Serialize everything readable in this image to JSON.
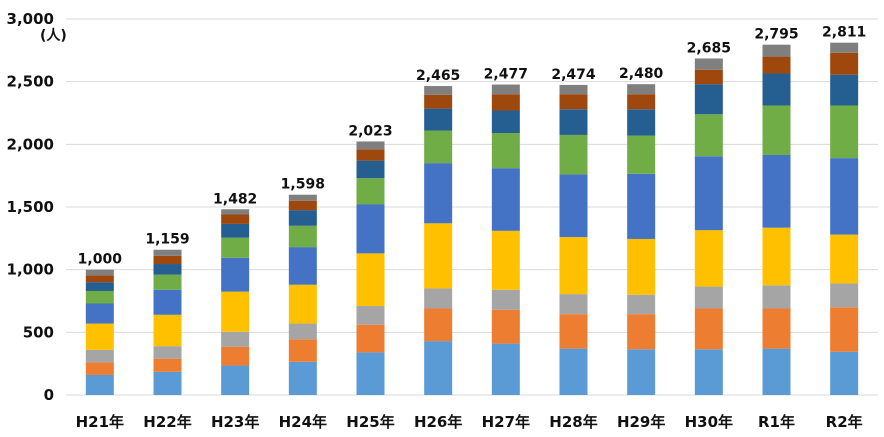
{
  "chart_data": {
    "type": "bar",
    "stacked": true,
    "unit": "(人)",
    "ylim": [
      0,
      3000
    ],
    "yticks": [
      "0",
      "500",
      "1,000",
      "1,500",
      "2,000",
      "2,500",
      "3,000"
    ],
    "ytick_values": [
      0,
      500,
      1000,
      1500,
      2000,
      2500,
      3000
    ],
    "grid": true,
    "legend": "none",
    "categories": [
      "H21年",
      "H22年",
      "H23年",
      "H24年",
      "H25年",
      "H26年",
      "H27年",
      "H28年",
      "H29年",
      "H30年",
      "R1年",
      "R2年"
    ],
    "totals": [
      1000,
      1159,
      1482,
      1598,
      2023,
      2465,
      2477,
      2474,
      2480,
      2685,
      2795,
      2811
    ],
    "total_labels": [
      "1,000",
      "1,159",
      "1,482",
      "1,598",
      "2,023",
      "2,465",
      "2,477",
      "2,474",
      "2,480",
      "2,685",
      "2,795",
      "2,811"
    ],
    "series": [
      {
        "color": "#5b9bd5",
        "values": [
          160,
          185,
          235,
          265,
          340,
          430,
          410,
          370,
          365,
          365,
          370,
          345
        ]
      },
      {
        "color": "#ed7d31",
        "values": [
          100,
          105,
          150,
          180,
          220,
          260,
          270,
          275,
          280,
          325,
          320,
          355
        ]
      },
      {
        "color": "#a5a5a5",
        "values": [
          100,
          100,
          120,
          125,
          150,
          160,
          160,
          160,
          155,
          175,
          185,
          190
        ]
      },
      {
        "color": "#ffc000",
        "values": [
          210,
          250,
          320,
          310,
          420,
          520,
          470,
          455,
          445,
          450,
          460,
          390
        ]
      },
      {
        "color": "#4472c4",
        "values": [
          160,
          200,
          270,
          300,
          390,
          480,
          500,
          500,
          520,
          590,
          580,
          610
        ]
      },
      {
        "color": "#70ad47",
        "values": [
          100,
          120,
          160,
          170,
          210,
          260,
          280,
          315,
          305,
          335,
          395,
          420
        ]
      },
      {
        "color": "#255e91",
        "values": [
          70,
          85,
          110,
          125,
          140,
          175,
          180,
          205,
          210,
          240,
          255,
          245
        ]
      },
      {
        "color": "#9e480e",
        "values": [
          55,
          65,
          75,
          75,
          90,
          110,
          130,
          120,
          120,
          115,
          135,
          175
        ]
      },
      {
        "color": "#7f7f7f",
        "values": [
          45,
          49,
          42,
          48,
          63,
          70,
          77,
          74,
          80,
          90,
          95,
          81
        ]
      }
    ]
  }
}
